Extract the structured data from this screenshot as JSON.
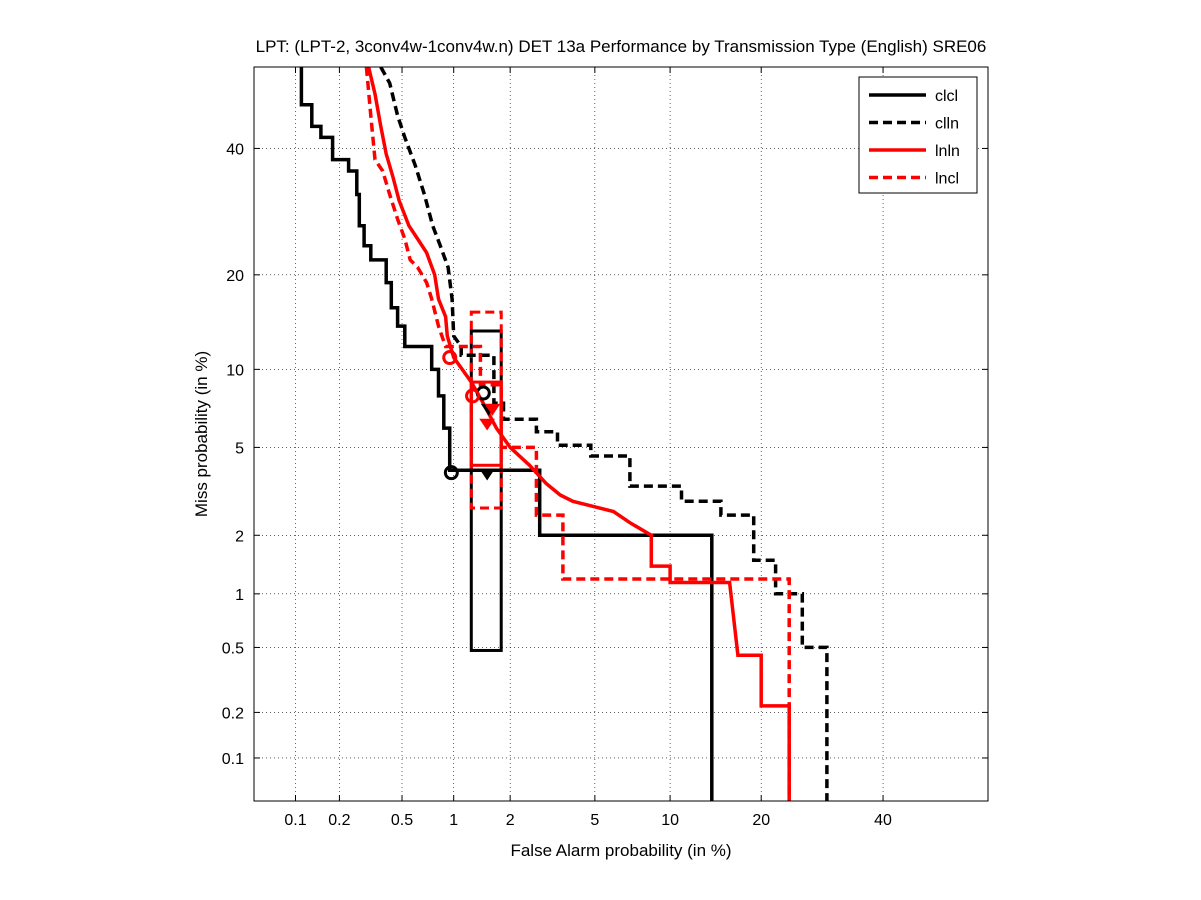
{
  "chart_data": {
    "type": "line",
    "title": "LPT: (LPT-2, 3conv4w-1conv4w.n) DET 13a Performance by Transmission Type (English) SRE06",
    "xlabel": "False Alarm probability (in %)",
    "ylabel": "Miss probability (in %)",
    "x_scale": "probit",
    "y_scale": "probit",
    "xlim": [
      0.05,
      60
    ],
    "ylim": [
      0.05,
      55
    ],
    "x_ticks": [
      0.1,
      0.2,
      0.5,
      1,
      2,
      5,
      10,
      20,
      40
    ],
    "x_tick_labels": [
      "0.1",
      "0.2",
      "0.5",
      "1",
      "2",
      "5",
      "10",
      "20",
      "40"
    ],
    "y_ticks": [
      0.1,
      0.2,
      0.5,
      1,
      2,
      5,
      10,
      20,
      40
    ],
    "y_tick_labels": [
      "0.1",
      "0.2",
      "0.5",
      "1",
      "2",
      "5",
      "10",
      "20",
      "40"
    ],
    "grid": true,
    "legend_position": "top-right",
    "series": [
      {
        "name": "clcl",
        "color": "#000000",
        "dash": "solid",
        "points": [
          [
            0.11,
            55
          ],
          [
            0.11,
            48
          ],
          [
            0.13,
            48
          ],
          [
            0.13,
            44
          ],
          [
            0.15,
            44
          ],
          [
            0.15,
            42
          ],
          [
            0.18,
            42
          ],
          [
            0.18,
            38
          ],
          [
            0.23,
            38
          ],
          [
            0.23,
            36
          ],
          [
            0.26,
            36
          ],
          [
            0.26,
            32
          ],
          [
            0.27,
            32
          ],
          [
            0.27,
            27
          ],
          [
            0.29,
            27
          ],
          [
            0.29,
            24
          ],
          [
            0.32,
            24
          ],
          [
            0.32,
            22
          ],
          [
            0.4,
            22
          ],
          [
            0.4,
            19
          ],
          [
            0.43,
            19
          ],
          [
            0.43,
            16
          ],
          [
            0.47,
            16
          ],
          [
            0.47,
            14
          ],
          [
            0.52,
            14
          ],
          [
            0.52,
            12
          ],
          [
            0.75,
            12
          ],
          [
            0.75,
            10
          ],
          [
            0.82,
            10
          ],
          [
            0.82,
            8
          ],
          [
            0.88,
            8
          ],
          [
            0.88,
            6
          ],
          [
            0.95,
            6
          ],
          [
            0.95,
            4
          ],
          [
            2.8,
            4
          ],
          [
            2.8,
            2
          ],
          [
            14,
            2
          ],
          [
            14,
            0.05
          ]
        ],
        "marker_min_dcf": [
          0.97,
          3.9
        ],
        "marker_actual_dcf": [
          1.52,
          3.9
        ],
        "confidence_box": {
          "x": [
            1.25,
            1.8
          ],
          "y": [
            0.48,
            13.5
          ]
        }
      },
      {
        "name": "clln",
        "color": "#000000",
        "dash": "dashed",
        "points": [
          [
            0.37,
            55
          ],
          [
            0.42,
            52
          ],
          [
            0.47,
            46
          ],
          [
            0.52,
            42
          ],
          [
            0.6,
            37
          ],
          [
            0.68,
            32
          ],
          [
            0.76,
            27
          ],
          [
            0.84,
            24
          ],
          [
            0.93,
            21
          ],
          [
            0.98,
            17
          ],
          [
            1.0,
            13
          ],
          [
            1.1,
            12
          ],
          [
            1.1,
            11.2
          ],
          [
            1.65,
            11.2
          ],
          [
            1.65,
            7.5
          ],
          [
            1.85,
            7.5
          ],
          [
            1.85,
            6.5
          ],
          [
            2.7,
            6.5
          ],
          [
            2.7,
            5.8
          ],
          [
            3.4,
            5.8
          ],
          [
            3.4,
            5.1
          ],
          [
            4.8,
            5.1
          ],
          [
            4.8,
            4.6
          ],
          [
            7,
            4.6
          ],
          [
            7,
            3.4
          ],
          [
            11,
            3.4
          ],
          [
            11,
            2.9
          ],
          [
            15,
            2.9
          ],
          [
            15,
            2.5
          ],
          [
            19,
            2.5
          ],
          [
            19,
            1.5
          ],
          [
            22,
            1.5
          ],
          [
            22,
            1.0
          ],
          [
            26,
            1.0
          ],
          [
            26,
            0.5
          ],
          [
            30,
            0.5
          ],
          [
            30,
            0.05
          ]
        ],
        "marker_min_dcf": [
          1.45,
          8.2
        ],
        "marker_actual_dcf": [
          1.55,
          7.2
        ],
        "confidence_box": null
      },
      {
        "name": "lnln",
        "color": "#ff0000",
        "dash": "solid",
        "points": [
          [
            0.31,
            55
          ],
          [
            0.34,
            50
          ],
          [
            0.37,
            44
          ],
          [
            0.4,
            39
          ],
          [
            0.44,
            35
          ],
          [
            0.48,
            31
          ],
          [
            0.55,
            27
          ],
          [
            0.62,
            25
          ],
          [
            0.7,
            23
          ],
          [
            0.78,
            20
          ],
          [
            0.82,
            17
          ],
          [
            0.9,
            15
          ],
          [
            0.92,
            13
          ],
          [
            1.0,
            11
          ],
          [
            1.25,
            9
          ],
          [
            1.45,
            7.5
          ],
          [
            1.7,
            6
          ],
          [
            2.0,
            5
          ],
          [
            2.5,
            4.2
          ],
          [
            3.0,
            3.5
          ],
          [
            3.5,
            3.1
          ],
          [
            4.0,
            2.9
          ],
          [
            6.0,
            2.6
          ],
          [
            7.0,
            2.3
          ],
          [
            8.5,
            2.0
          ],
          [
            8.5,
            1.4
          ],
          [
            10,
            1.4
          ],
          [
            10,
            1.15
          ],
          [
            16,
            1.15
          ],
          [
            17,
            0.45
          ],
          [
            20,
            0.45
          ],
          [
            20,
            0.22
          ],
          [
            24,
            0.22
          ],
          [
            24,
            0.05
          ]
        ],
        "marker_min_dcf": [
          1.27,
          8.0
        ],
        "marker_actual_dcf": [
          1.52,
          6.3
        ],
        "confidence_box": {
          "x": [
            1.25,
            1.8
          ],
          "y": [
            4.2,
            9.0
          ]
        }
      },
      {
        "name": "lncl",
        "color": "#ff0000",
        "dash": "dashed",
        "points": [
          [
            0.3,
            55
          ],
          [
            0.32,
            46
          ],
          [
            0.34,
            38
          ],
          [
            0.38,
            36
          ],
          [
            0.42,
            32
          ],
          [
            0.47,
            28
          ],
          [
            0.52,
            25
          ],
          [
            0.56,
            22
          ],
          [
            0.62,
            21
          ],
          [
            0.7,
            19
          ],
          [
            0.75,
            17
          ],
          [
            0.82,
            14
          ],
          [
            0.9,
            12
          ],
          [
            1.4,
            12
          ],
          [
            1.4,
            8.8
          ],
          [
            1.8,
            8.8
          ],
          [
            1.8,
            5
          ],
          [
            2.7,
            5
          ],
          [
            2.7,
            2.5
          ],
          [
            3.6,
            2.5
          ],
          [
            3.6,
            1.2
          ],
          [
            24,
            1.2
          ],
          [
            24,
            0.05
          ]
        ],
        "marker_min_dcf": [
          0.95,
          11.0
        ],
        "marker_actual_dcf": [
          1.62,
          7.2
        ],
        "confidence_box": {
          "x": [
            1.25,
            1.8
          ],
          "y": [
            2.7,
            15.5
          ]
        }
      }
    ]
  }
}
